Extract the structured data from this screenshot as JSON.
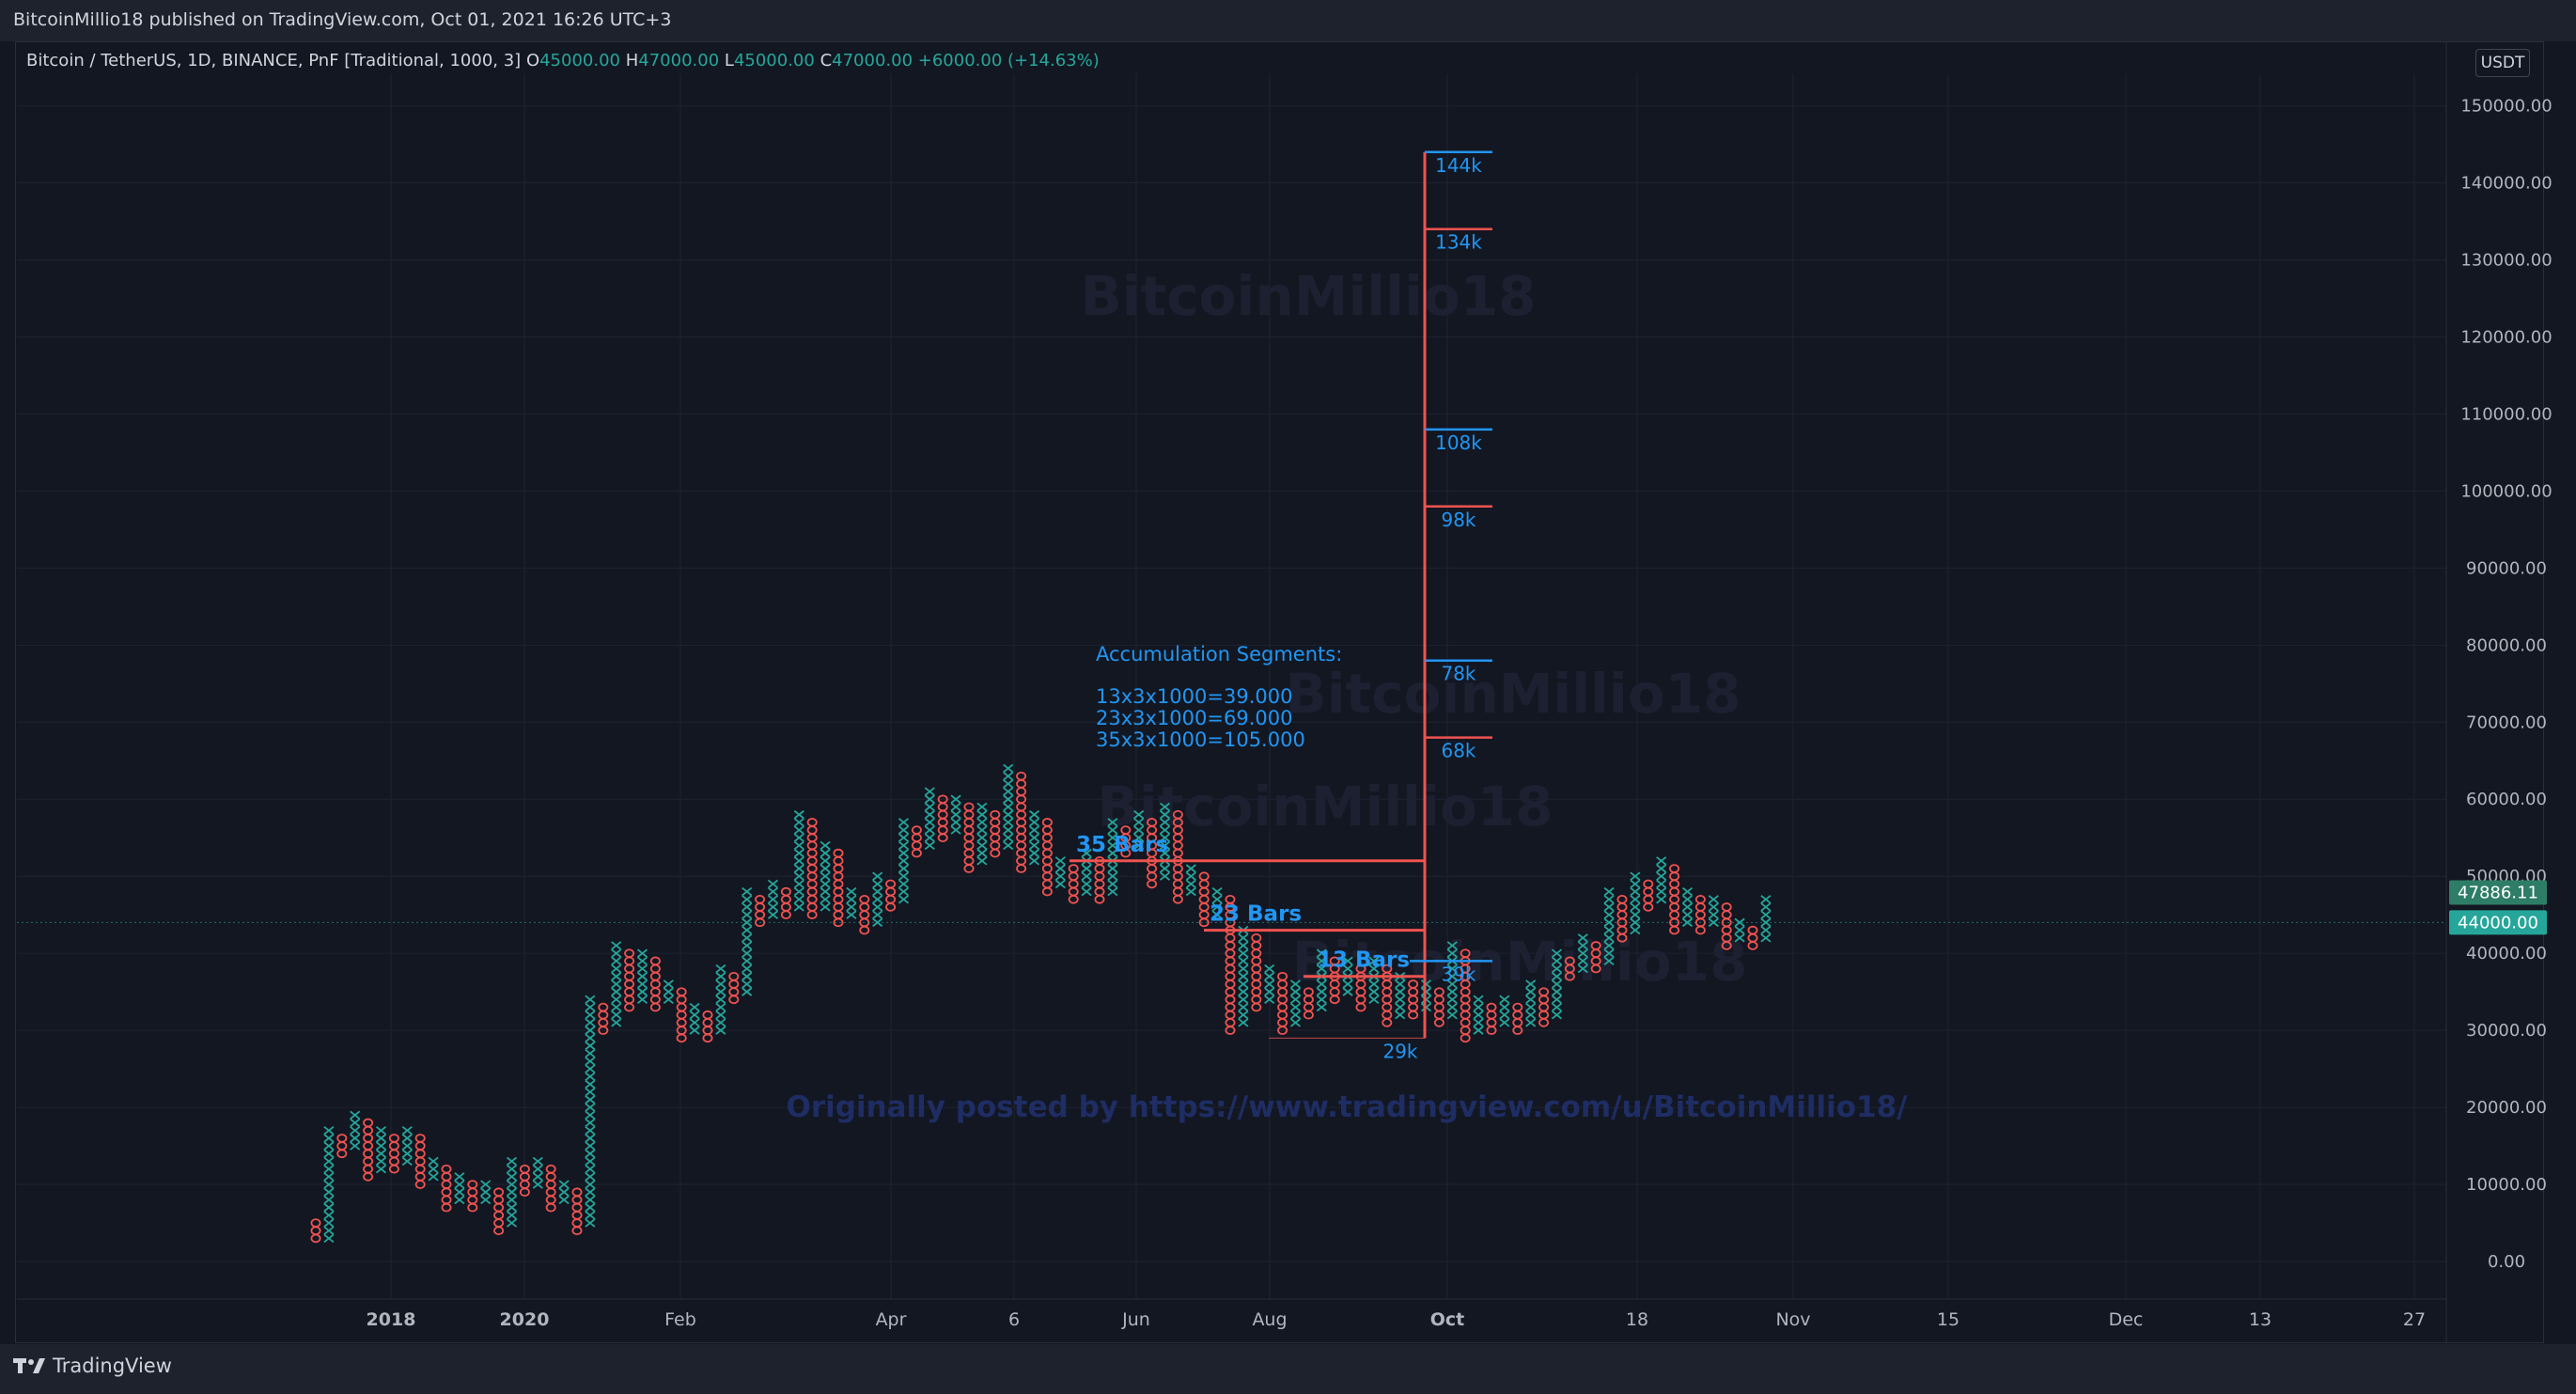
{
  "header": {
    "published": "BitcoinMillio18 published on TradingView.com, Oct 01, 2021 16:26 UTC+3"
  },
  "legend": {
    "symbol": "Bitcoin / TetherUS, 1D, BINANCE, PnF [Traditional, 1000, 3]",
    "o_label": "O",
    "o_value": "45000.00",
    "h_label": "H",
    "h_value": "47000.00",
    "l_label": "L",
    "l_value": "45000.00",
    "c_label": "C",
    "c_value": "47000.00",
    "change": "+6000.00 (+14.63%)"
  },
  "currency": "USDT",
  "footer": {
    "brand": "TradingView"
  },
  "colors": {
    "up": "#26a69a",
    "down": "#ef5350",
    "accent": "#2196f3",
    "background": "#131722"
  },
  "chart_data": {
    "type": "point-and-figure",
    "box_size": 1000,
    "reversal": 3,
    "ylim": [
      0,
      150000
    ],
    "y_ticks": [
      "150000.00",
      "140000.00",
      "130000.00",
      "120000.00",
      "110000.00",
      "100000.00",
      "90000.00",
      "80000.00",
      "70000.00",
      "60000.00",
      "50000.00",
      "40000.00",
      "30000.00",
      "20000.00",
      "10000.00",
      "0.00"
    ],
    "y_tick_values": [
      150000,
      140000,
      130000,
      120000,
      110000,
      100000,
      90000,
      80000,
      70000,
      60000,
      50000,
      40000,
      30000,
      20000,
      10000,
      0
    ],
    "x_ticks": [
      "2018",
      "2020",
      "Feb",
      "Apr",
      "6",
      "Jun",
      "Aug",
      "Oct",
      "18",
      "Nov",
      "15",
      "Dec",
      "13",
      "27"
    ],
    "x_tick_bold": [
      true,
      true,
      false,
      false,
      false,
      false,
      false,
      true,
      false,
      false,
      false,
      false,
      false,
      false
    ],
    "price_badges": [
      {
        "label": "47886.11",
        "value": 47886.11,
        "color": "#2e7d66"
      },
      {
        "label": "44000.00",
        "value": 44000,
        "color": "#26a69a"
      }
    ],
    "columns": [
      {
        "type": "O",
        "low": 3000,
        "high": 5000
      },
      {
        "type": "X",
        "low": 3000,
        "high": 17000
      },
      {
        "type": "O",
        "low": 14000,
        "high": 16000
      },
      {
        "type": "X",
        "low": 15000,
        "high": 19000
      },
      {
        "type": "O",
        "low": 11000,
        "high": 18000
      },
      {
        "type": "X",
        "low": 12000,
        "high": 17000
      },
      {
        "type": "O",
        "low": 12000,
        "high": 16000
      },
      {
        "type": "X",
        "low": 13000,
        "high": 17000
      },
      {
        "type": "O",
        "low": 10000,
        "high": 16000
      },
      {
        "type": "X",
        "low": 11000,
        "high": 13000
      },
      {
        "type": "O",
        "low": 7000,
        "high": 12000
      },
      {
        "type": "X",
        "low": 8000,
        "high": 11000
      },
      {
        "type": "O",
        "low": 7000,
        "high": 10000
      },
      {
        "type": "X",
        "low": 8000,
        "high": 10000
      },
      {
        "type": "O",
        "low": 4000,
        "high": 9000
      },
      {
        "type": "X",
        "low": 5000,
        "high": 13000
      },
      {
        "type": "O",
        "low": 9000,
        "high": 12000
      },
      {
        "type": "X",
        "low": 10000,
        "high": 13000
      },
      {
        "type": "O",
        "low": 7000,
        "high": 12000
      },
      {
        "type": "X",
        "low": 8000,
        "high": 10000
      },
      {
        "type": "O",
        "low": 4000,
        "high": 9000
      },
      {
        "type": "X",
        "low": 5000,
        "high": 34000
      },
      {
        "type": "O",
        "low": 30000,
        "high": 33000
      },
      {
        "type": "X",
        "low": 31000,
        "high": 41000
      },
      {
        "type": "O",
        "low": 33000,
        "high": 40000
      },
      {
        "type": "X",
        "low": 34000,
        "high": 40000
      },
      {
        "type": "O",
        "low": 33000,
        "high": 39000
      },
      {
        "type": "X",
        "low": 34000,
        "high": 36000
      },
      {
        "type": "O",
        "low": 29000,
        "high": 35000
      },
      {
        "type": "X",
        "low": 30000,
        "high": 33000
      },
      {
        "type": "O",
        "low": 29000,
        "high": 32000
      },
      {
        "type": "X",
        "low": 30000,
        "high": 38000
      },
      {
        "type": "O",
        "low": 34000,
        "high": 37000
      },
      {
        "type": "X",
        "low": 35000,
        "high": 48000
      },
      {
        "type": "O",
        "low": 44000,
        "high": 47000
      },
      {
        "type": "X",
        "low": 45000,
        "high": 49000
      },
      {
        "type": "O",
        "low": 45000,
        "high": 48000
      },
      {
        "type": "X",
        "low": 46000,
        "high": 58000
      },
      {
        "type": "O",
        "low": 45000,
        "high": 57000
      },
      {
        "type": "X",
        "low": 46000,
        "high": 54000
      },
      {
        "type": "O",
        "low": 44000,
        "high": 53000
      },
      {
        "type": "X",
        "low": 45000,
        "high": 48000
      },
      {
        "type": "O",
        "low": 43000,
        "high": 47000
      },
      {
        "type": "X",
        "low": 44000,
        "high": 50000
      },
      {
        "type": "O",
        "low": 46000,
        "high": 49000
      },
      {
        "type": "X",
        "low": 47000,
        "high": 57000
      },
      {
        "type": "O",
        "low": 53000,
        "high": 56000
      },
      {
        "type": "X",
        "low": 54000,
        "high": 61000
      },
      {
        "type": "O",
        "low": 55000,
        "high": 60000
      },
      {
        "type": "X",
        "low": 56000,
        "high": 60000
      },
      {
        "type": "O",
        "low": 51000,
        "high": 59000
      },
      {
        "type": "X",
        "low": 52000,
        "high": 59000
      },
      {
        "type": "O",
        "low": 53000,
        "high": 58000
      },
      {
        "type": "X",
        "low": 54000,
        "high": 64000
      },
      {
        "type": "O",
        "low": 51000,
        "high": 63000
      },
      {
        "type": "X",
        "low": 52000,
        "high": 58000
      },
      {
        "type": "O",
        "low": 48000,
        "high": 57000
      },
      {
        "type": "X",
        "low": 49000,
        "high": 52000
      },
      {
        "type": "O",
        "low": 47000,
        "high": 51000
      },
      {
        "type": "X",
        "low": 48000,
        "high": 53000
      },
      {
        "type": "O",
        "low": 47000,
        "high": 52000
      },
      {
        "type": "X",
        "low": 48000,
        "high": 57000
      },
      {
        "type": "O",
        "low": 53000,
        "high": 56000
      },
      {
        "type": "X",
        "low": 54000,
        "high": 58000
      },
      {
        "type": "O",
        "low": 49000,
        "high": 57000
      },
      {
        "type": "X",
        "low": 50000,
        "high": 59000
      },
      {
        "type": "O",
        "low": 47000,
        "high": 58000
      },
      {
        "type": "X",
        "low": 48000,
        "high": 51000
      },
      {
        "type": "O",
        "low": 44000,
        "high": 50000
      },
      {
        "type": "X",
        "low": 45000,
        "high": 48000
      },
      {
        "type": "O",
        "low": 30000,
        "high": 47000
      },
      {
        "type": "X",
        "low": 31000,
        "high": 43000
      },
      {
        "type": "O",
        "low": 33000,
        "high": 42000
      },
      {
        "type": "X",
        "low": 34000,
        "high": 38000
      },
      {
        "type": "O",
        "low": 30000,
        "high": 37000
      },
      {
        "type": "X",
        "low": 31000,
        "high": 36000
      },
      {
        "type": "O",
        "low": 32000,
        "high": 35000
      },
      {
        "type": "X",
        "low": 33000,
        "high": 40000
      },
      {
        "type": "O",
        "low": 34000,
        "high": 39000
      },
      {
        "type": "X",
        "low": 35000,
        "high": 39000
      },
      {
        "type": "O",
        "low": 33000,
        "high": 38000
      },
      {
        "type": "X",
        "low": 34000,
        "high": 39000
      },
      {
        "type": "O",
        "low": 31000,
        "high": 38000
      },
      {
        "type": "X",
        "low": 32000,
        "high": 37000
      },
      {
        "type": "O",
        "low": 32000,
        "high": 36000
      },
      {
        "type": "X",
        "low": 33000,
        "high": 36000
      },
      {
        "type": "O",
        "low": 31000,
        "high": 35000
      },
      {
        "type": "X",
        "low": 32000,
        "high": 41000
      },
      {
        "type": "O",
        "low": 29000,
        "high": 40000
      },
      {
        "type": "X",
        "low": 30000,
        "high": 34000
      },
      {
        "type": "O",
        "low": 30000,
        "high": 33000
      },
      {
        "type": "X",
        "low": 31000,
        "high": 34000
      },
      {
        "type": "O",
        "low": 30000,
        "high": 33000
      },
      {
        "type": "X",
        "low": 31000,
        "high": 36000
      },
      {
        "type": "O",
        "low": 31000,
        "high": 35000
      },
      {
        "type": "X",
        "low": 32000,
        "high": 40000
      },
      {
        "type": "O",
        "low": 37000,
        "high": 39000
      },
      {
        "type": "X",
        "low": 38000,
        "high": 42000
      },
      {
        "type": "O",
        "low": 38000,
        "high": 41000
      },
      {
        "type": "X",
        "low": 39000,
        "high": 48000
      },
      {
        "type": "O",
        "low": 42000,
        "high": 47000
      },
      {
        "type": "X",
        "low": 43000,
        "high": 50000
      },
      {
        "type": "O",
        "low": 46000,
        "high": 49000
      },
      {
        "type": "X",
        "low": 47000,
        "high": 52000
      },
      {
        "type": "O",
        "low": 43000,
        "high": 51000
      },
      {
        "type": "X",
        "low": 44000,
        "high": 48000
      },
      {
        "type": "O",
        "low": 43000,
        "high": 47000
      },
      {
        "type": "X",
        "low": 44000,
        "high": 47000
      },
      {
        "type": "O",
        "low": 41000,
        "high": 46000
      },
      {
        "type": "X",
        "low": 42000,
        "high": 44000
      },
      {
        "type": "O",
        "low": 41000,
        "high": 43000
      },
      {
        "type": "X",
        "low": 42000,
        "high": 47000
      }
    ],
    "annotation_text": {
      "heading": "Accumulation Segments:",
      "line1": "13x3x1000=39.000",
      "line2": "23x3x1000=69.000",
      "line3": "35x3x1000=105.000"
    },
    "bar_counts": [
      {
        "label": "35 Bars",
        "value": 52000
      },
      {
        "label": "23 Bars",
        "value": 43000
      },
      {
        "label": "13 Bars",
        "value": 37000
      }
    ],
    "target_levels": [
      {
        "label": "144k",
        "value": 144000,
        "color": "#2196f3"
      },
      {
        "label": "134k",
        "value": 134000,
        "color": "#ef5350"
      },
      {
        "label": "108k",
        "value": 108000,
        "color": "#2196f3"
      },
      {
        "label": "98k",
        "value": 98000,
        "color": "#ef5350"
      },
      {
        "label": "78k",
        "value": 78000,
        "color": "#2196f3"
      },
      {
        "label": "68k",
        "value": 68000,
        "color": "#ef5350"
      },
      {
        "label": "39k",
        "value": 39000,
        "color": "#2196f3"
      },
      {
        "label": "29k",
        "value": 29000,
        "color": "#ef5350"
      }
    ],
    "watermarks": [
      "BitcoinMillio18",
      "BitcoinMillio18",
      "BitcoinMillio18",
      "BitcoinMillio18"
    ],
    "credit": "Originally posted by https://www.tradingview.com/u/BitcoinMillio18/"
  }
}
